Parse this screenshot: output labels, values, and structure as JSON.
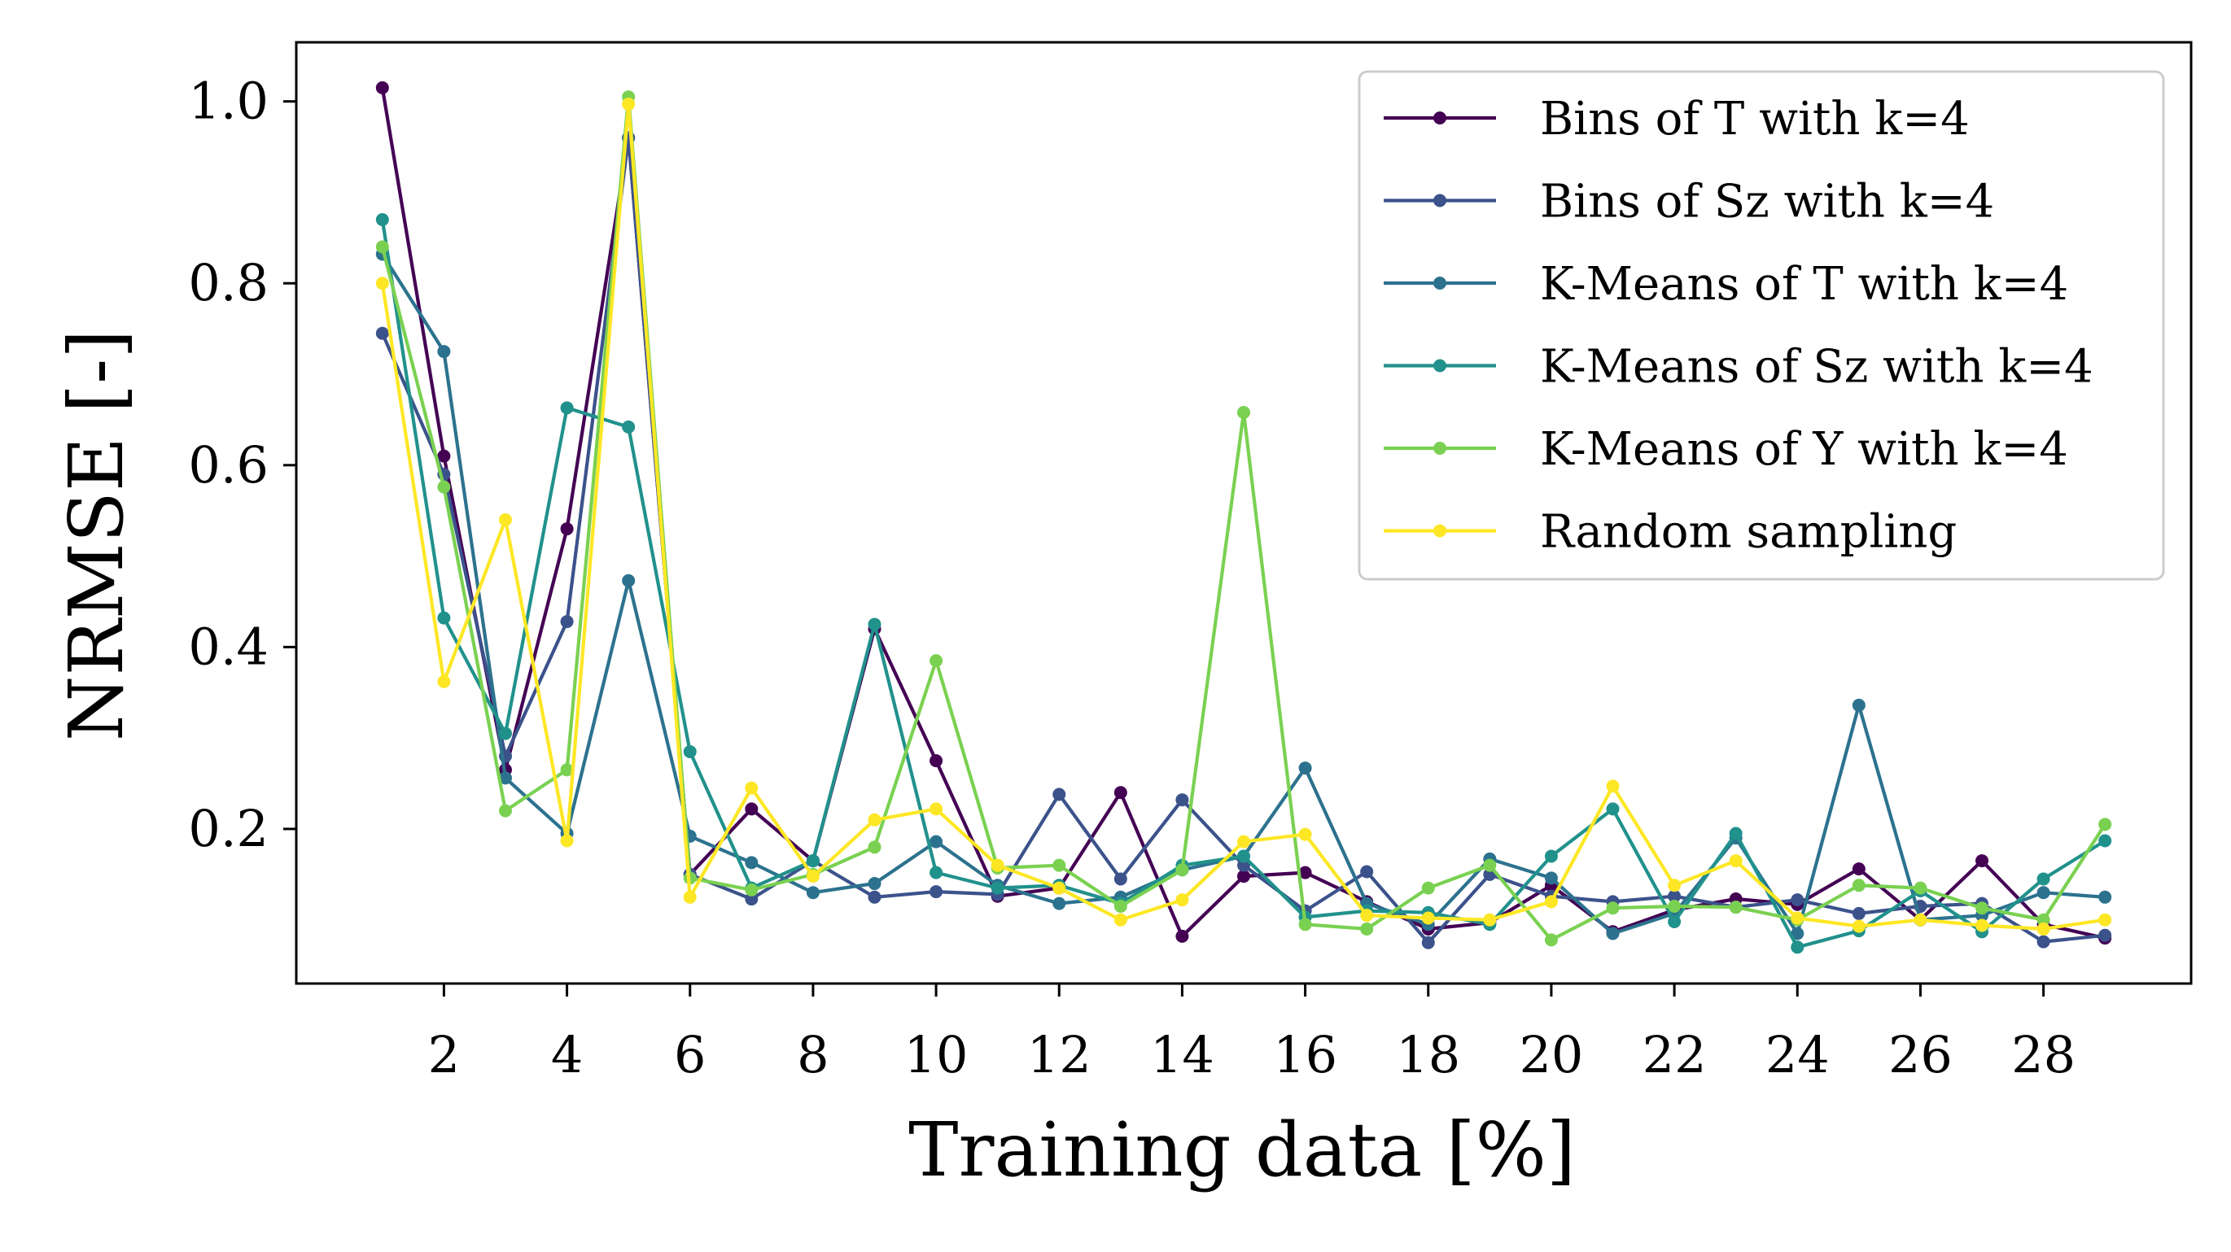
{
  "chart_data": {
    "type": "line",
    "title": "",
    "xlabel": "Training data [%]",
    "ylabel": "NRMSE [-]",
    "xlim": [
      -0.4,
      30.4
    ],
    "ylim": [
      0.03,
      1.065
    ],
    "xticks": [
      2,
      4,
      6,
      8,
      10,
      12,
      14,
      16,
      18,
      20,
      22,
      24,
      26,
      28
    ],
    "yticks": [
      0.2,
      0.4,
      0.6,
      0.8,
      1.0
    ],
    "ytick_labels": [
      "0.2",
      "0.4",
      "0.6",
      "0.8",
      "1.0"
    ],
    "grid": false,
    "legend_position": "top-right",
    "x": [
      1,
      2,
      3,
      4,
      5,
      6,
      7,
      8,
      9,
      10,
      11,
      12,
      13,
      14,
      15,
      16,
      17,
      18,
      19,
      20,
      21,
      22,
      23,
      24,
      25,
      26,
      27,
      28,
      29
    ],
    "series": [
      {
        "name": "Bins of T with k=4",
        "color": "#440154",
        "values": [
          1.015,
          0.61,
          0.265,
          0.53,
          0.96,
          0.15,
          0.222,
          0.165,
          0.42,
          0.275,
          0.126,
          0.135,
          0.24,
          0.082,
          0.148,
          0.152,
          0.12,
          0.09,
          0.097,
          0.138,
          0.087,
          0.111,
          0.123,
          0.117,
          0.156,
          0.1,
          0.165,
          0.095,
          0.08
        ]
      },
      {
        "name": "Bins of Sz with k=4",
        "color": "#3b528b",
        "values": [
          0.745,
          0.59,
          0.28,
          0.428,
          0.96,
          0.15,
          0.123,
          0.165,
          0.125,
          0.131,
          0.128,
          0.238,
          0.145,
          0.232,
          0.16,
          0.11,
          0.153,
          0.075,
          0.15,
          0.126,
          0.12,
          0.126,
          0.114,
          0.122,
          0.107,
          0.115,
          0.118,
          0.076,
          0.083
        ]
      },
      {
        "name": "K-Means of T with k=4",
        "color": "#2c728e",
        "values": [
          0.832,
          0.725,
          0.256,
          0.195,
          0.473,
          0.192,
          0.163,
          0.13,
          0.14,
          0.186,
          0.138,
          0.118,
          0.125,
          0.155,
          0.17,
          0.267,
          0.118,
          0.095,
          0.167,
          0.146,
          0.085,
          0.107,
          0.19,
          0.085,
          0.336,
          0.1,
          0.105,
          0.13,
          0.125
        ]
      },
      {
        "name": "K-Means of Sz with k=4",
        "color": "#21918c",
        "values": [
          0.87,
          0.432,
          0.305,
          0.663,
          0.642,
          0.285,
          0.135,
          0.165,
          0.425,
          0.152,
          0.135,
          0.138,
          0.118,
          0.16,
          0.17,
          0.103,
          0.11,
          0.108,
          0.095,
          0.17,
          0.222,
          0.098,
          0.195,
          0.07,
          0.088,
          0.132,
          0.087,
          0.145,
          0.187
        ]
      },
      {
        "name": "K-Means of Y with k=4",
        "color": "#7ad151",
        "values": [
          0.84,
          0.576,
          0.22,
          0.265,
          1.005,
          0.146,
          0.133,
          0.15,
          0.18,
          0.385,
          0.157,
          0.16,
          0.115,
          0.155,
          0.658,
          0.095,
          0.09,
          0.135,
          0.16,
          0.078,
          0.113,
          0.115,
          0.114,
          0.1,
          0.138,
          0.135,
          0.113,
          0.1,
          0.205
        ]
      },
      {
        "name": "Random sampling",
        "color": "#fde725",
        "values": [
          0.8,
          0.362,
          0.54,
          0.187,
          0.997,
          0.125,
          0.245,
          0.148,
          0.21,
          0.222,
          0.16,
          0.135,
          0.1,
          0.122,
          0.186,
          0.194,
          0.105,
          0.102,
          0.1,
          0.12,
          0.247,
          0.138,
          0.165,
          0.102,
          0.093,
          0.1,
          0.094,
          0.09,
          0.1
        ]
      }
    ]
  }
}
